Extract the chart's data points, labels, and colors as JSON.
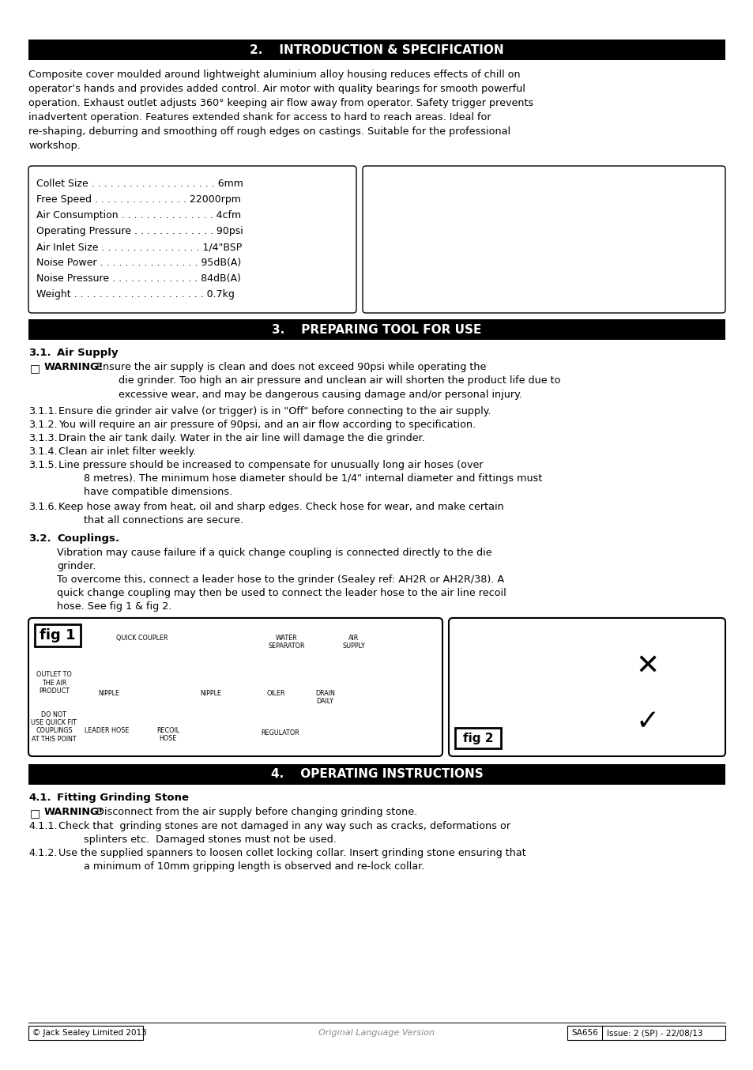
{
  "page_bg": "#ffffff",
  "header_bg": "#000000",
  "header_text_color": "#ffffff",
  "body_text_color": "#000000",
  "border_color": "#000000",
  "section2_title": "2.    INTRODUCTION & SPECIFICATION",
  "section3_title": "3.    PREPARING TOOL FOR USE",
  "section4_title": "4.    OPERATING INSTRUCTIONS",
  "intro_text": "Composite cover moulded around lightweight aluminium alloy housing reduces effects of chill on\noperator’s hands and provides added control. Air motor with quality bearings for smooth powerful\noperation. Exhaust outlet adjusts 360° keeping air flow away from operator. Safety trigger prevents\ninadvertent operation. Features extended shank for access to hard to reach areas. Ideal for\nre-shaping, deburring and smoothing off rough edges on castings. Suitable for the professional\nworkshop.",
  "footer_left": "© Jack Sealey Limited 2013",
  "footer_center": "Original Language Version",
  "footer_right_1": "SA656",
  "footer_right_2": "Issue: 2 (SP) - 22/08/13"
}
